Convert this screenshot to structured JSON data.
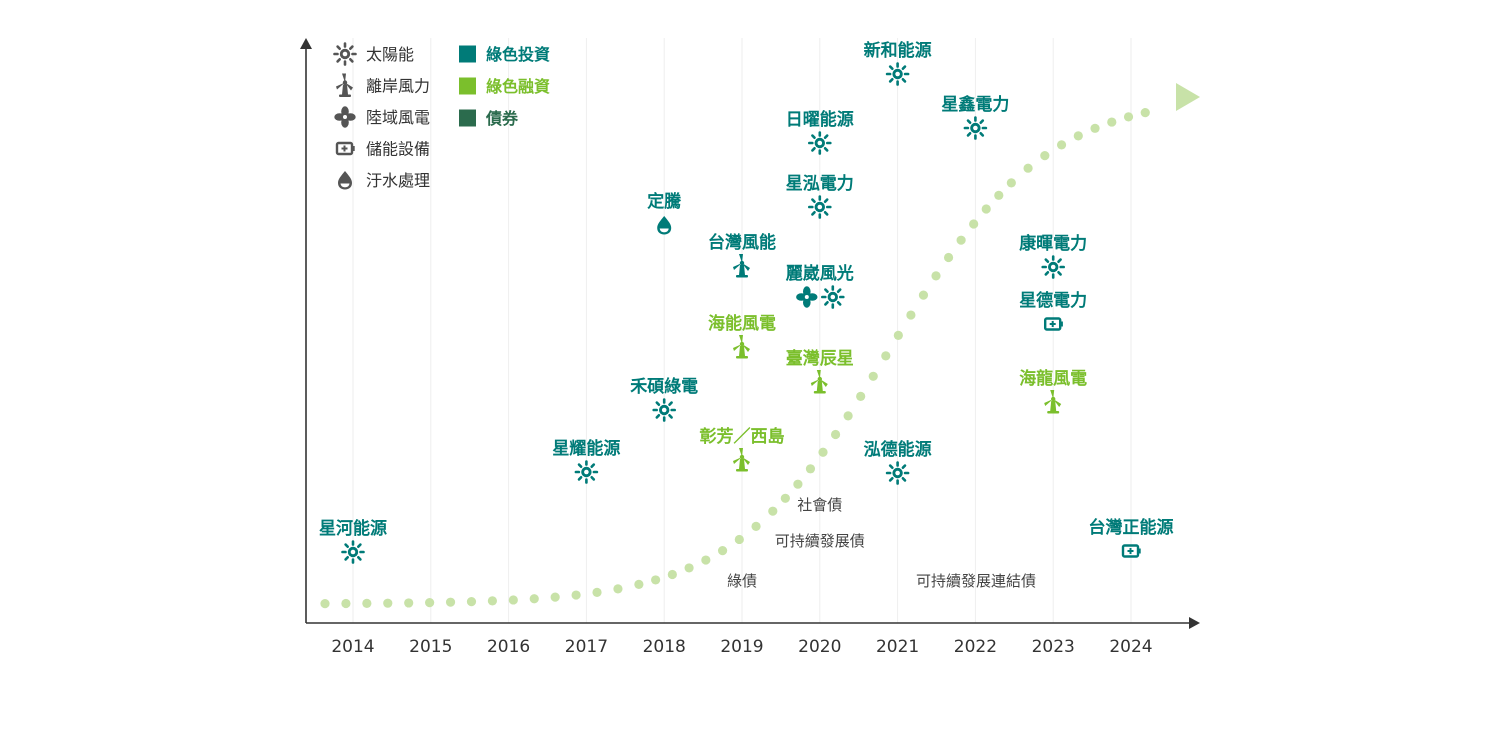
{
  "chart_data": {
    "type": "scatter",
    "title": "",
    "xlabel": "",
    "ylabel": "",
    "years": [
      "2014",
      "2015",
      "2016",
      "2017",
      "2018",
      "2019",
      "2020",
      "2021",
      "2022",
      "2023",
      "2024"
    ],
    "legend": {
      "categories": [
        {
          "label": "太陽能",
          "icon": "sun-icon"
        },
        {
          "label": "離岸風力",
          "icon": "offshore-wind-icon"
        },
        {
          "label": "陸域風電",
          "icon": "onshore-fan-icon"
        },
        {
          "label": "儲能設備",
          "icon": "battery-icon"
        },
        {
          "label": "汙水處理",
          "icon": "water-drop-icon"
        }
      ],
      "finance_types": [
        {
          "label": "綠色投資",
          "color": "#007b78"
        },
        {
          "label": "綠色融資",
          "color": "#7bbf2c"
        },
        {
          "label": "債券",
          "color": "#2b6b4d"
        }
      ]
    },
    "projects": [
      {
        "name": "星河能源",
        "year": 2014,
        "finance": "綠色投資",
        "icons": [
          "sun-icon"
        ]
      },
      {
        "name": "星耀能源",
        "year": 2017,
        "finance": "綠色投資",
        "icons": [
          "sun-icon"
        ]
      },
      {
        "name": "定騰",
        "year": 2018,
        "finance": "綠色投資",
        "icons": [
          "water-drop-icon"
        ]
      },
      {
        "name": "禾碩綠電",
        "year": 2018,
        "finance": "綠色投資",
        "icons": [
          "sun-icon"
        ]
      },
      {
        "name": "台灣風能",
        "year": 2019,
        "finance": "綠色投資",
        "icons": [
          "offshore-wind-icon"
        ]
      },
      {
        "name": "海能風電",
        "year": 2019,
        "finance": "綠色融資",
        "icons": [
          "offshore-wind-icon"
        ]
      },
      {
        "name": "彰芳／西島",
        "year": 2019,
        "finance": "綠色融資",
        "icons": [
          "offshore-wind-icon"
        ]
      },
      {
        "name": "日曜能源",
        "year": 2020,
        "finance": "綠色投資",
        "icons": [
          "sun-icon"
        ]
      },
      {
        "name": "星泓電力",
        "year": 2020,
        "finance": "綠色投資",
        "icons": [
          "sun-icon"
        ]
      },
      {
        "name": "麗崴風光",
        "year": 2020,
        "finance": "綠色投資",
        "icons": [
          "onshore-fan-icon",
          "sun-icon"
        ]
      },
      {
        "name": "臺灣辰星",
        "year": 2020,
        "finance": "綠色融資",
        "icons": [
          "offshore-wind-icon"
        ]
      },
      {
        "name": "新和能源",
        "year": 2021,
        "finance": "綠色投資",
        "icons": [
          "sun-icon"
        ]
      },
      {
        "name": "泓德能源",
        "year": 2021,
        "finance": "綠色投資",
        "icons": [
          "sun-icon"
        ]
      },
      {
        "name": "星鑫電力",
        "year": 2022,
        "finance": "綠色投資",
        "icons": [
          "sun-icon"
        ]
      },
      {
        "name": "康暉電力",
        "year": 2023,
        "finance": "綠色投資",
        "icons": [
          "sun-icon"
        ]
      },
      {
        "name": "星德電力",
        "year": 2023,
        "finance": "綠色投資",
        "icons": [
          "battery-icon"
        ]
      },
      {
        "name": "海龍風電",
        "year": 2023,
        "finance": "綠色融資",
        "icons": [
          "offshore-wind-icon"
        ]
      },
      {
        "name": "台灣正能源",
        "year": 2024,
        "finance": "綠色投資",
        "icons": [
          "battery-icon"
        ]
      }
    ],
    "bonds": [
      {
        "name": "綠債",
        "year": 2019
      },
      {
        "name": "社會債",
        "year": 2020
      },
      {
        "name": "可持續發展債",
        "year": 2020
      },
      {
        "name": "可持續發展連結債",
        "year": 2022
      }
    ],
    "trend_curve": {
      "shape": "s-curve",
      "style": "dotted",
      "color": "#c8e2a8",
      "direction": "rising"
    },
    "grid": true,
    "legend_position": "top-left"
  }
}
